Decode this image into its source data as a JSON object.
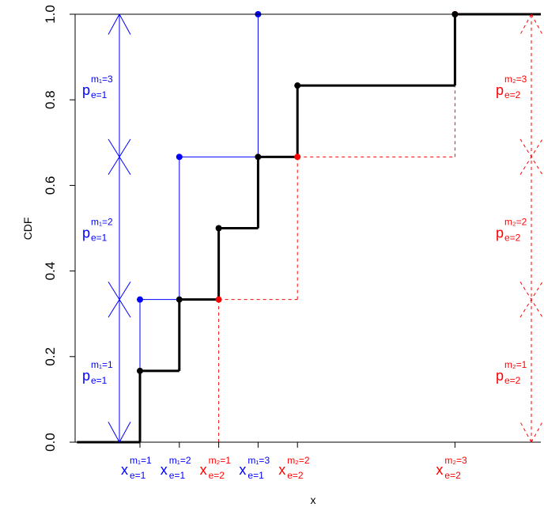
{
  "chart_data": {
    "type": "line",
    "title": "",
    "xlabel": "x",
    "ylabel": "CDF",
    "ylim": [
      0,
      1
    ],
    "y_ticks": [
      {
        "value": 0.0,
        "label": "0.0"
      },
      {
        "value": 0.2,
        "label": "0.2"
      },
      {
        "value": 0.4,
        "label": "0.4"
      },
      {
        "value": 0.6,
        "label": "0.6"
      },
      {
        "value": 0.8,
        "label": "0.8"
      },
      {
        "value": 1.0,
        "label": "1.0"
      }
    ],
    "x_range": [
      -0.6,
      11.5
    ],
    "grid": false,
    "colors": {
      "series_1": "#0000ff",
      "series_2": "#ff0000",
      "combined": "#000000"
    },
    "series": [
      {
        "key": "series_1",
        "style": "solid-step",
        "points": [
          {
            "x": 1,
            "y": 0.3333
          },
          {
            "x": 2,
            "y": 0.6667
          },
          {
            "x": 4,
            "y": 1.0
          }
        ]
      },
      {
        "key": "series_2",
        "style": "dashed-step",
        "points": [
          {
            "x": 3,
            "y": 0.3333
          },
          {
            "x": 5,
            "y": 0.6667
          },
          {
            "x": 9,
            "y": 1.0
          }
        ]
      },
      {
        "key": "combined",
        "style": "thick-step",
        "points": [
          {
            "x": 1,
            "y": 0.1667
          },
          {
            "x": 2,
            "y": 0.3333
          },
          {
            "x": 3,
            "y": 0.5
          },
          {
            "x": 4,
            "y": 0.6667
          },
          {
            "x": 5,
            "y": 0.8333
          },
          {
            "x": 9,
            "y": 1.0
          }
        ]
      }
    ],
    "x_annotations": [
      {
        "x": 1,
        "main": "x",
        "sup": "m₁=1",
        "sub": "e=1",
        "color": "#0000ff"
      },
      {
        "x": 2,
        "main": "x",
        "sup": "m₁=2",
        "sub": "e=1",
        "color": "#0000ff"
      },
      {
        "x": 3,
        "main": "x",
        "sup": "m₂=1",
        "sub": "e=2",
        "color": "#ff0000"
      },
      {
        "x": 4,
        "main": "x",
        "sup": "m₁=3",
        "sub": "e=1",
        "color": "#0000ff"
      },
      {
        "x": 5,
        "main": "x",
        "sup": "m₂=2",
        "sub": "e=2",
        "color": "#ff0000"
      },
      {
        "x": 9,
        "main": "x",
        "sup": "m₂=3",
        "sub": "e=2",
        "color": "#ff0000"
      }
    ],
    "prob_arrows": [
      {
        "key": "series_1",
        "x": -0.6,
        "dashed": false,
        "color": "#0000ff",
        "breaks": [
          0,
          0.3333,
          0.6667,
          1.0
        ],
        "labels": [
          {
            "main": "p",
            "sup": "m₁=1",
            "sub": "e=1"
          },
          {
            "main": "p",
            "sup": "m₁=2",
            "sub": "e=1"
          },
          {
            "main": "p",
            "sup": "m₁=3",
            "sub": "e=1"
          }
        ]
      },
      {
        "key": "series_2",
        "x": 11,
        "dashed": true,
        "color": "#ff0000",
        "breaks": [
          0,
          0.3333,
          0.6667,
          1.0
        ],
        "labels": [
          {
            "main": "p",
            "sup": "m₂=1",
            "sub": "e=2"
          },
          {
            "main": "p",
            "sup": "m₂=2",
            "sub": "e=2"
          },
          {
            "main": "p",
            "sup": "m₂=3",
            "sub": "e=2"
          }
        ]
      }
    ]
  }
}
